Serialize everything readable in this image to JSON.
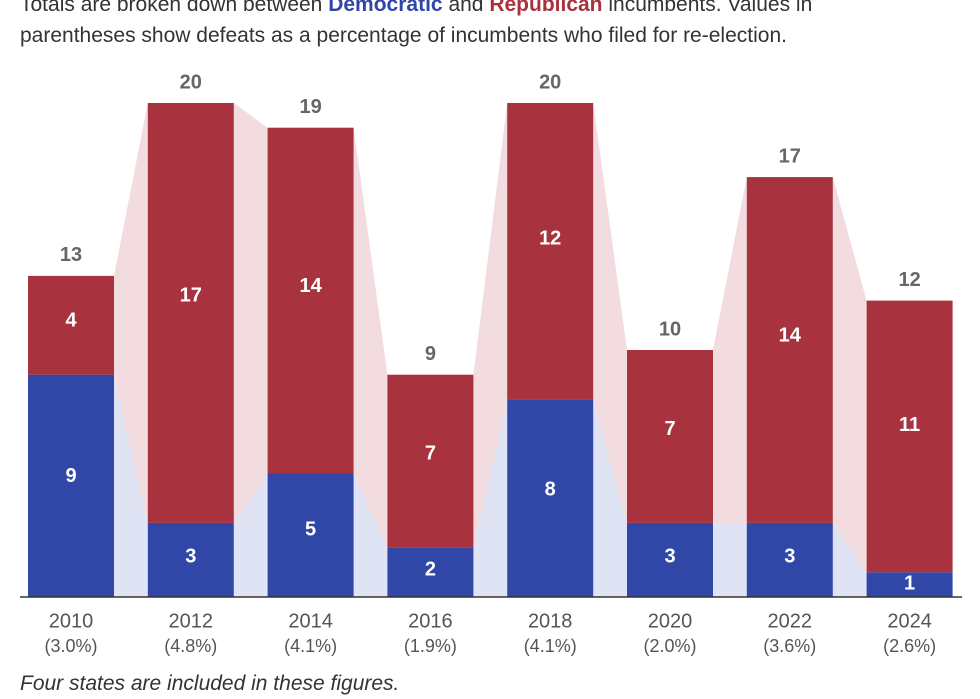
{
  "subtitle": {
    "line1_prefix": "Totals are broken down between",
    "line1_dem": "Democratic",
    "line1_and": "and",
    "line1_rep": "Republican",
    "line1_suffix": "incumbents. Values in",
    "line2": "parentheses show defeats as a percentage of incumbents who filed for re-election."
  },
  "footnote": "Four states are included in these figures.",
  "colors": {
    "democratic": "#3047a8",
    "republican": "#a8323e",
    "dem_connector": "#e0e3f3",
    "rep_connector": "#f3dcdf",
    "total_label": "#666666",
    "axis_label": "#555555"
  },
  "chart_data": {
    "type": "bar",
    "stacked": true,
    "title": "",
    "xlabel": "",
    "ylabel": "",
    "ylim": [
      0,
      20
    ],
    "grid": false,
    "categories": [
      "2010",
      "2012",
      "2014",
      "2016",
      "2018",
      "2020",
      "2022",
      "2024"
    ],
    "percent_labels": [
      "(3.0%)",
      "(4.8%)",
      "(4.1%)",
      "(1.9%)",
      "(4.1%)",
      "(2.0%)",
      "(3.6%)",
      "(2.6%)"
    ],
    "series": [
      {
        "name": "Democratic",
        "values": [
          9,
          3,
          5,
          2,
          8,
          3,
          3,
          1
        ]
      },
      {
        "name": "Republican",
        "values": [
          4,
          17,
          14,
          7,
          12,
          7,
          14,
          11
        ]
      }
    ],
    "totals": [
      13,
      20,
      19,
      9,
      20,
      10,
      17,
      12
    ]
  }
}
